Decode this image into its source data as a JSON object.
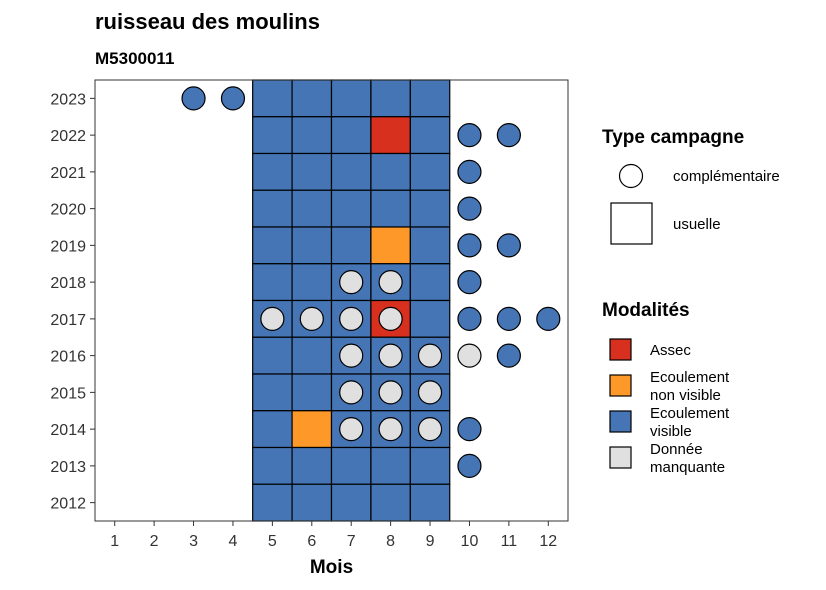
{
  "chart_data": {
    "type": "heatmap",
    "title": "ruisseau des moulins",
    "subtitle": "M5300011",
    "xlabel": "Mois",
    "ylabel": "",
    "x_ticks": [
      "1",
      "2",
      "3",
      "4",
      "5",
      "6",
      "7",
      "8",
      "9",
      "10",
      "11",
      "12"
    ],
    "y_ticks": [
      "2012",
      "2013",
      "2014",
      "2015",
      "2016",
      "2017",
      "2018",
      "2019",
      "2020",
      "2021",
      "2022",
      "2023"
    ],
    "xlim": [
      0.5,
      12.5
    ],
    "ylim": [
      2011.5,
      2023.5
    ],
    "grid": false,
    "colors": {
      "Assec": "#d7301f",
      "Ecoulement non visible": "#fe9929",
      "Ecoulement visible": "#4575b4",
      "Donnée manquante": "#e0e0e0"
    },
    "usuelle": [
      {
        "year": 2023,
        "month": 5,
        "mod": "Ecoulement visible"
      },
      {
        "year": 2023,
        "month": 6,
        "mod": "Ecoulement visible"
      },
      {
        "year": 2023,
        "month": 7,
        "mod": "Ecoulement visible"
      },
      {
        "year": 2023,
        "month": 8,
        "mod": "Ecoulement visible"
      },
      {
        "year": 2023,
        "month": 9,
        "mod": "Ecoulement visible"
      },
      {
        "year": 2022,
        "month": 5,
        "mod": "Ecoulement visible"
      },
      {
        "year": 2022,
        "month": 6,
        "mod": "Ecoulement visible"
      },
      {
        "year": 2022,
        "month": 7,
        "mod": "Ecoulement visible"
      },
      {
        "year": 2022,
        "month": 8,
        "mod": "Assec"
      },
      {
        "year": 2022,
        "month": 9,
        "mod": "Ecoulement visible"
      },
      {
        "year": 2021,
        "month": 5,
        "mod": "Ecoulement visible"
      },
      {
        "year": 2021,
        "month": 6,
        "mod": "Ecoulement visible"
      },
      {
        "year": 2021,
        "month": 7,
        "mod": "Ecoulement visible"
      },
      {
        "year": 2021,
        "month": 8,
        "mod": "Ecoulement visible"
      },
      {
        "year": 2021,
        "month": 9,
        "mod": "Ecoulement visible"
      },
      {
        "year": 2020,
        "month": 5,
        "mod": "Ecoulement visible"
      },
      {
        "year": 2020,
        "month": 6,
        "mod": "Ecoulement visible"
      },
      {
        "year": 2020,
        "month": 7,
        "mod": "Ecoulement visible"
      },
      {
        "year": 2020,
        "month": 8,
        "mod": "Ecoulement visible"
      },
      {
        "year": 2020,
        "month": 9,
        "mod": "Ecoulement visible"
      },
      {
        "year": 2019,
        "month": 5,
        "mod": "Ecoulement visible"
      },
      {
        "year": 2019,
        "month": 6,
        "mod": "Ecoulement visible"
      },
      {
        "year": 2019,
        "month": 7,
        "mod": "Ecoulement visible"
      },
      {
        "year": 2019,
        "month": 8,
        "mod": "Ecoulement non visible"
      },
      {
        "year": 2019,
        "month": 9,
        "mod": "Ecoulement visible"
      },
      {
        "year": 2018,
        "month": 5,
        "mod": "Ecoulement visible"
      },
      {
        "year": 2018,
        "month": 6,
        "mod": "Ecoulement visible"
      },
      {
        "year": 2018,
        "month": 7,
        "mod": "Ecoulement visible"
      },
      {
        "year": 2018,
        "month": 8,
        "mod": "Ecoulement visible"
      },
      {
        "year": 2018,
        "month": 9,
        "mod": "Ecoulement visible"
      },
      {
        "year": 2017,
        "month": 5,
        "mod": "Ecoulement visible"
      },
      {
        "year": 2017,
        "month": 6,
        "mod": "Ecoulement visible"
      },
      {
        "year": 2017,
        "month": 7,
        "mod": "Ecoulement visible"
      },
      {
        "year": 2017,
        "month": 8,
        "mod": "Assec"
      },
      {
        "year": 2017,
        "month": 9,
        "mod": "Ecoulement visible"
      },
      {
        "year": 2016,
        "month": 5,
        "mod": "Ecoulement visible"
      },
      {
        "year": 2016,
        "month": 6,
        "mod": "Ecoulement visible"
      },
      {
        "year": 2016,
        "month": 7,
        "mod": "Ecoulement visible"
      },
      {
        "year": 2016,
        "month": 8,
        "mod": "Ecoulement visible"
      },
      {
        "year": 2016,
        "month": 9,
        "mod": "Ecoulement visible"
      },
      {
        "year": 2015,
        "month": 5,
        "mod": "Ecoulement visible"
      },
      {
        "year": 2015,
        "month": 6,
        "mod": "Ecoulement visible"
      },
      {
        "year": 2015,
        "month": 7,
        "mod": "Ecoulement visible"
      },
      {
        "year": 2015,
        "month": 8,
        "mod": "Ecoulement visible"
      },
      {
        "year": 2015,
        "month": 9,
        "mod": "Ecoulement visible"
      },
      {
        "year": 2014,
        "month": 5,
        "mod": "Ecoulement visible"
      },
      {
        "year": 2014,
        "month": 6,
        "mod": "Ecoulement non visible"
      },
      {
        "year": 2014,
        "month": 7,
        "mod": "Ecoulement visible"
      },
      {
        "year": 2014,
        "month": 8,
        "mod": "Ecoulement visible"
      },
      {
        "year": 2014,
        "month": 9,
        "mod": "Ecoulement visible"
      },
      {
        "year": 2013,
        "month": 5,
        "mod": "Ecoulement visible"
      },
      {
        "year": 2013,
        "month": 6,
        "mod": "Ecoulement visible"
      },
      {
        "year": 2013,
        "month": 7,
        "mod": "Ecoulement visible"
      },
      {
        "year": 2013,
        "month": 8,
        "mod": "Ecoulement visible"
      },
      {
        "year": 2013,
        "month": 9,
        "mod": "Ecoulement visible"
      },
      {
        "year": 2012,
        "month": 5,
        "mod": "Ecoulement visible"
      },
      {
        "year": 2012,
        "month": 6,
        "mod": "Ecoulement visible"
      },
      {
        "year": 2012,
        "month": 7,
        "mod": "Ecoulement visible"
      },
      {
        "year": 2012,
        "month": 8,
        "mod": "Ecoulement visible"
      },
      {
        "year": 2012,
        "month": 9,
        "mod": "Ecoulement visible"
      }
    ],
    "complementaire": [
      {
        "year": 2023,
        "month": 3,
        "mod": "Ecoulement visible"
      },
      {
        "year": 2023,
        "month": 4,
        "mod": "Ecoulement visible"
      },
      {
        "year": 2022,
        "month": 10,
        "mod": "Ecoulement visible"
      },
      {
        "year": 2022,
        "month": 11,
        "mod": "Ecoulement visible"
      },
      {
        "year": 2021,
        "month": 10,
        "mod": "Ecoulement visible"
      },
      {
        "year": 2020,
        "month": 10,
        "mod": "Ecoulement visible"
      },
      {
        "year": 2019,
        "month": 10,
        "mod": "Ecoulement visible"
      },
      {
        "year": 2019,
        "month": 11,
        "mod": "Ecoulement visible"
      },
      {
        "year": 2018,
        "month": 7,
        "mod": "Donnée manquante"
      },
      {
        "year": 2018,
        "month": 8,
        "mod": "Donnée manquante"
      },
      {
        "year": 2018,
        "month": 10,
        "mod": "Ecoulement visible"
      },
      {
        "year": 2017,
        "month": 5,
        "mod": "Donnée manquante"
      },
      {
        "year": 2017,
        "month": 6,
        "mod": "Donnée manquante"
      },
      {
        "year": 2017,
        "month": 7,
        "mod": "Donnée manquante"
      },
      {
        "year": 2017,
        "month": 8,
        "mod": "Donnée manquante"
      },
      {
        "year": 2017,
        "month": 10,
        "mod": "Ecoulement visible"
      },
      {
        "year": 2017,
        "month": 11,
        "mod": "Ecoulement visible"
      },
      {
        "year": 2017,
        "month": 12,
        "mod": "Ecoulement visible"
      },
      {
        "year": 2016,
        "month": 7,
        "mod": "Donnée manquante"
      },
      {
        "year": 2016,
        "month": 8,
        "mod": "Donnée manquante"
      },
      {
        "year": 2016,
        "month": 9,
        "mod": "Donnée manquante"
      },
      {
        "year": 2016,
        "month": 10,
        "mod": "Donnée manquante"
      },
      {
        "year": 2016,
        "month": 11,
        "mod": "Ecoulement visible"
      },
      {
        "year": 2015,
        "month": 7,
        "mod": "Donnée manquante"
      },
      {
        "year": 2015,
        "month": 8,
        "mod": "Donnée manquante"
      },
      {
        "year": 2015,
        "month": 9,
        "mod": "Donnée manquante"
      },
      {
        "year": 2014,
        "month": 7,
        "mod": "Donnée manquante"
      },
      {
        "year": 2014,
        "month": 8,
        "mod": "Donnée manquante"
      },
      {
        "year": 2014,
        "month": 9,
        "mod": "Donnée manquante"
      },
      {
        "year": 2014,
        "month": 10,
        "mod": "Ecoulement visible"
      },
      {
        "year": 2013,
        "month": 10,
        "mod": "Ecoulement visible"
      }
    ],
    "legend": {
      "type_title": "Type campagne",
      "type_items": [
        {
          "key": "complementaire",
          "label": "complémentaire",
          "shape": "circle"
        },
        {
          "key": "usuelle",
          "label": "usuelle",
          "shape": "square"
        }
      ],
      "mod_title": "Modalités",
      "mod_items": [
        {
          "key": "Assec",
          "lines": [
            "Assec"
          ]
        },
        {
          "key": "Ecoulement non visible",
          "lines": [
            "Ecoulement",
            "non visible"
          ]
        },
        {
          "key": "Ecoulement visible",
          "lines": [
            "Ecoulement",
            "visible"
          ]
        },
        {
          "key": "Donnée manquante",
          "lines": [
            "Donnée",
            "manquante"
          ]
        }
      ],
      "placement": "right"
    }
  }
}
